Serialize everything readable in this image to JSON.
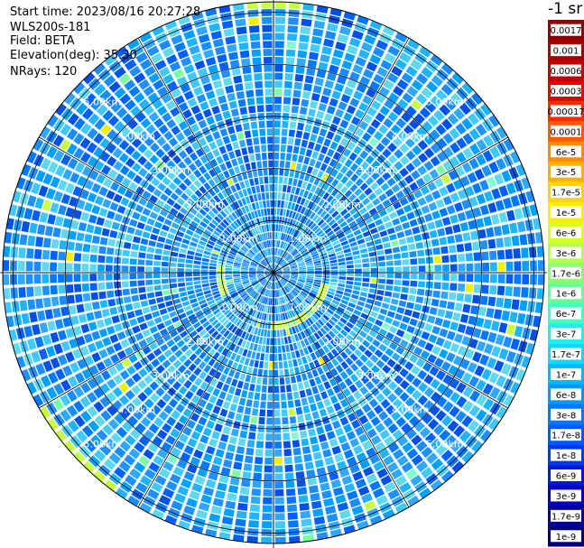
{
  "info": {
    "start_time": "Start time: 2023/08/16 20:27:28",
    "instrument": "WLS200s-181",
    "field": "Field: BETA",
    "elevation": "Elevation(deg): 35.30",
    "nrays": "NRays: 120"
  },
  "colorbar": {
    "unit_label": "-1 sr",
    "labels": [
      "0.0017",
      "0.001",
      "0.0006",
      "0.0003",
      "0.00017",
      "0.0001",
      "6e-5",
      "3e-5",
      "1.7e-5",
      "1e-5",
      "6e-6",
      "3e-6",
      "1.7e-6",
      "1e-6",
      "6e-7",
      "3e-7",
      "1.7e-7",
      "1e-7",
      "6e-8",
      "3e-8",
      "1.7e-8",
      "1e-8",
      "6e-9",
      "3e-9",
      "1.7e-9",
      "1e-9"
    ],
    "colors": [
      "#8b0000",
      "#a50000",
      "#c00000",
      "#e00000",
      "#ff2a00",
      "#ff5a00",
      "#ff8c00",
      "#ffb000",
      "#ffd400",
      "#f4f000",
      "#d8ff20",
      "#b4ff48",
      "#8cff70",
      "#64ff98",
      "#40ffc0",
      "#20f0e8",
      "#10d8ff",
      "#00b8ff",
      "#0098ff",
      "#0078ff",
      "#0058ff",
      "#0038ee",
      "#0018d8",
      "#0000c0",
      "#00009c",
      "#000078"
    ]
  },
  "chart_data": {
    "type": "polar-ppi",
    "field": "BETA",
    "unit": "sr-1",
    "scale": "log",
    "range_min": 1e-09,
    "range_max": 0.0017,
    "nrays": 120,
    "elevation_deg": 35.3,
    "ring_labels": [
      "1.00km",
      "2.00km",
      "3.00km",
      "4.00km",
      "5.00km"
    ],
    "ring_distances_km": [
      1,
      2,
      3,
      4,
      5
    ],
    "max_range_km": 5.2,
    "typical_value": "3e-8 to 1.7e-7"
  }
}
